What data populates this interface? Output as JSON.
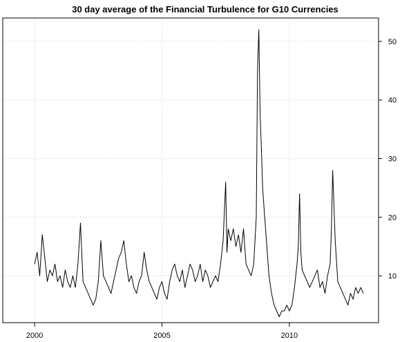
{
  "chart_data": {
    "type": "line",
    "title": "30 day average of the Financial Turbulence for G10 Currencies",
    "xlabel": "",
    "ylabel": "",
    "xlim": [
      1998.75,
      2013.5
    ],
    "ylim": [
      2.0,
      54.0
    ],
    "x_ticks": [
      2000,
      2005,
      2010
    ],
    "x_tick_labels": [
      "2000",
      "2005",
      "2010"
    ],
    "y_ticks": [
      10,
      20,
      30,
      40,
      50
    ],
    "y_tick_labels": [
      "10",
      "20",
      "30",
      "40",
      "50"
    ],
    "grid": true,
    "series": [
      {
        "color": "#000000",
        "x": [
          2000.0,
          2000.1,
          2000.2,
          2000.3,
          2000.4,
          2000.5,
          2000.6,
          2000.7,
          2000.8,
          2000.9,
          2001.0,
          2001.1,
          2001.2,
          2001.3,
          2001.4,
          2001.5,
          2001.6,
          2001.7,
          2001.8,
          2001.9,
          2002.0,
          2002.1,
          2002.2,
          2002.3,
          2002.4,
          2002.5,
          2002.6,
          2002.7,
          2002.8,
          2002.9,
          2003.0,
          2003.1,
          2003.2,
          2003.3,
          2003.4,
          2003.5,
          2003.6,
          2003.7,
          2003.8,
          2003.9,
          2004.0,
          2004.1,
          2004.2,
          2004.3,
          2004.4,
          2004.5,
          2004.6,
          2004.7,
          2004.8,
          2004.9,
          2005.0,
          2005.1,
          2005.2,
          2005.3,
          2005.4,
          2005.5,
          2005.6,
          2005.7,
          2005.8,
          2005.9,
          2006.0,
          2006.1,
          2006.2,
          2006.3,
          2006.4,
          2006.5,
          2006.6,
          2006.7,
          2006.8,
          2006.9,
          2007.0,
          2007.1,
          2007.2,
          2007.3,
          2007.4,
          2007.5,
          2007.55,
          2007.6,
          2007.7,
          2007.8,
          2007.9,
          2008.0,
          2008.1,
          2008.2,
          2008.3,
          2008.4,
          2008.5,
          2008.6,
          2008.7,
          2008.75,
          2008.8,
          2008.85,
          2008.9,
          2008.95,
          2009.0,
          2009.1,
          2009.2,
          2009.3,
          2009.4,
          2009.5,
          2009.6,
          2009.7,
          2009.8,
          2009.9,
          2010.0,
          2010.1,
          2010.2,
          2010.3,
          2010.35,
          2010.4,
          2010.45,
          2010.5,
          2010.6,
          2010.7,
          2010.8,
          2010.9,
          2011.0,
          2011.1,
          2011.2,
          2011.3,
          2011.4,
          2011.5,
          2011.6,
          2011.65,
          2011.7,
          2011.8,
          2011.9,
          2012.0,
          2012.1,
          2012.2,
          2012.3,
          2012.4,
          2012.5,
          2012.6,
          2012.7,
          2012.8,
          2012.9
        ],
        "values": [
          12,
          14,
          10,
          17,
          13,
          9,
          11,
          10,
          12,
          9,
          10,
          8,
          11,
          9,
          8,
          10,
          8,
          12,
          19,
          9,
          8,
          7,
          6,
          5,
          6,
          9,
          16,
          10,
          9,
          8,
          7,
          9,
          11,
          13,
          14,
          16,
          12,
          9,
          10,
          8,
          7,
          9,
          10,
          14,
          11,
          9,
          8,
          7,
          6,
          8,
          9,
          7,
          6,
          9,
          11,
          12,
          10,
          9,
          11,
          8,
          10,
          12,
          11,
          9,
          10,
          12,
          9,
          11,
          10,
          8,
          9,
          10,
          9,
          12,
          16,
          26,
          14,
          18,
          16,
          18,
          15,
          17,
          14,
          18,
          12,
          11,
          10,
          12,
          20,
          45,
          52,
          38,
          32,
          25,
          22,
          16,
          10,
          7,
          5,
          4,
          3,
          4,
          4,
          5,
          4,
          5,
          8,
          12,
          15,
          24,
          14,
          11,
          10,
          9,
          8,
          9,
          10,
          11,
          8,
          9,
          7,
          10,
          12,
          18,
          28,
          16,
          9,
          8,
          7,
          6,
          5,
          7,
          6,
          8,
          7,
          8,
          7
        ]
      }
    ]
  }
}
